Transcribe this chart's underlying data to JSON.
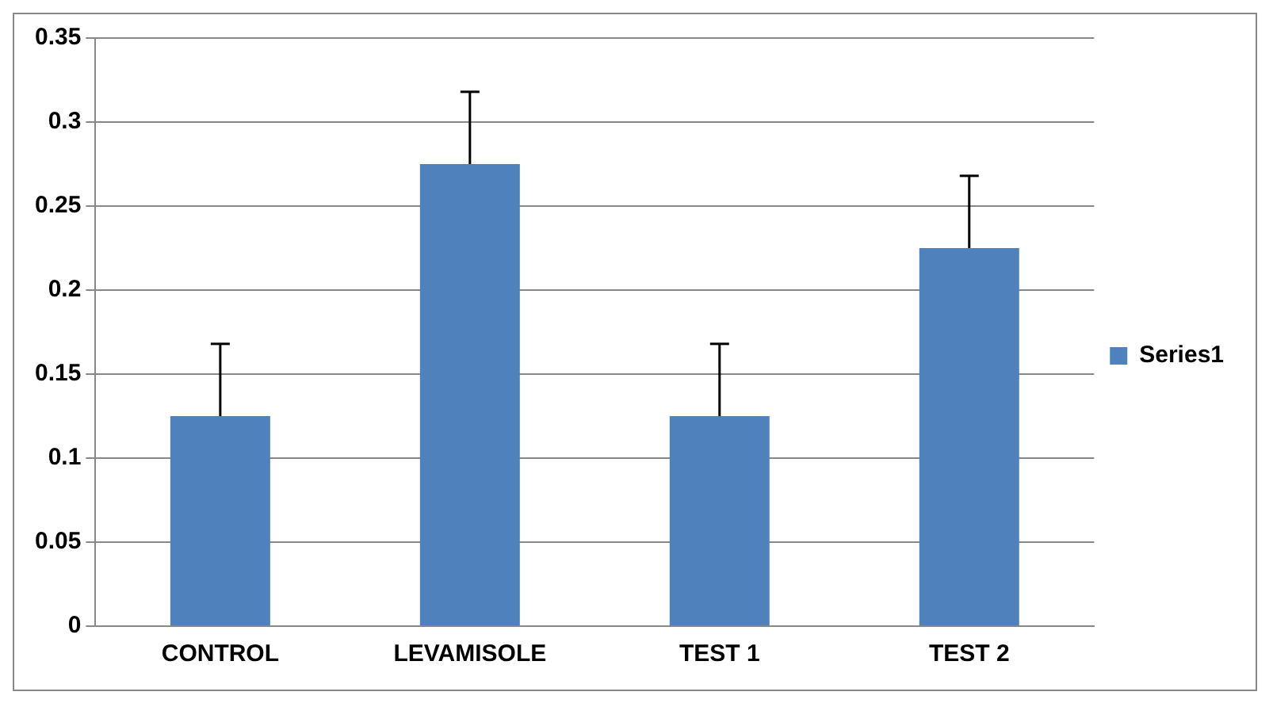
{
  "chart_data": {
    "type": "bar",
    "categories": [
      "CONTROL",
      "LEVAMISOLE",
      "TEST 1",
      "TEST 2"
    ],
    "series": [
      {
        "name": "Series1",
        "color": "#4f81bd",
        "values": [
          0.125,
          0.275,
          0.125,
          0.225
        ],
        "errors": [
          [
            0.125,
            0.168
          ],
          [
            0.275,
            0.318
          ],
          [
            0.125,
            0.168
          ],
          [
            0.225,
            0.268
          ]
        ]
      }
    ],
    "ylim": [
      0,
      0.35
    ],
    "yticks": [
      0,
      0.05,
      0.1,
      0.15,
      0.2,
      0.25,
      0.3,
      0.35
    ],
    "grid": "y",
    "legend": "right"
  }
}
